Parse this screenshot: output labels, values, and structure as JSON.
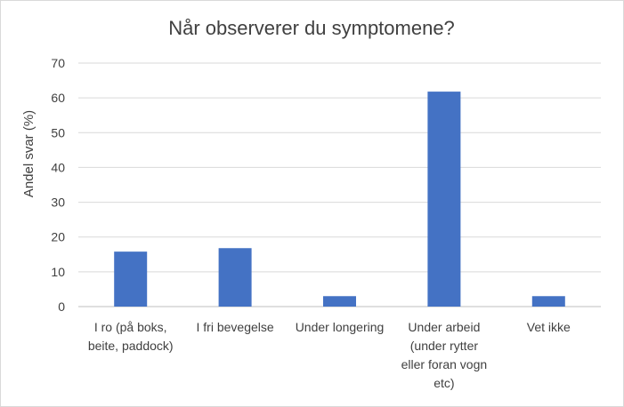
{
  "chart_data": {
    "type": "bar",
    "title": "Når observerer du symptomene?",
    "xlabel": "",
    "ylabel": "Andel svar (%)",
    "ylim": [
      0,
      70
    ],
    "yticks": [
      0,
      10,
      20,
      30,
      40,
      50,
      60,
      70
    ],
    "grid": true,
    "categories": [
      "I ro (på boks, beite, paddock)",
      "I fri bevegelse",
      "Under longering",
      "Under arbeid (under rytter eller foran vogn etc)",
      "Vet ikke"
    ],
    "category_lines": [
      [
        "I ro (på boks,",
        "beite, paddock)"
      ],
      [
        "I fri bevegelse"
      ],
      [
        "Under longering"
      ],
      [
        "Under arbeid",
        "(under rytter",
        "eller foran vogn",
        "etc)"
      ],
      [
        "Vet ikke"
      ]
    ],
    "values": [
      15.8,
      16.8,
      3.0,
      61.8,
      3.0
    ],
    "bar_color": "#4472c4"
  }
}
